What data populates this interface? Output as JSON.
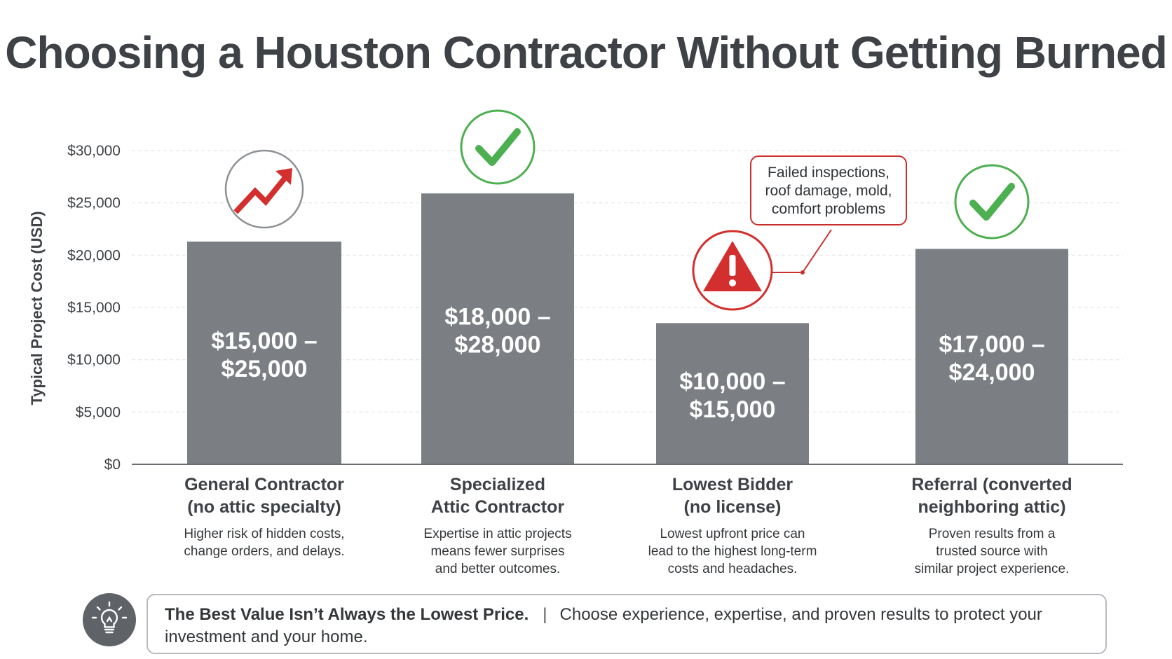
{
  "title": "Choosing a Houston Contractor Without Getting Burned",
  "chart_data": {
    "type": "bar",
    "ylabel": "Typical Project Cost (USD)",
    "ylim": [
      0,
      30000
    ],
    "yticks": [
      "$0",
      "$5,000",
      "$10,000",
      "$15,000",
      "$20,000",
      "$25,000",
      "$30,000"
    ],
    "grid": true,
    "categories": [
      "General Contractor\n(no attic specialty)",
      "Specialized\nAttic Contractor",
      "Lowest Bidder\n(no license)",
      "Referral (converted\nneighboring attic)"
    ],
    "values": [
      21300,
      25900,
      13500,
      20600
    ],
    "bar_labels": [
      "$15,000 –\n$25,000",
      "$18,000 –\n$28,000",
      "$10,000 –\n$15,000",
      "$17,000 –\n$24,000"
    ],
    "descriptions": [
      "Higher risk of hidden costs,\nchange orders, and delays.",
      "Expertise in attic projects\nmeans fewer surprises\nand better outcomes.",
      "Lowest upfront price can\nlead to the highest long-term\ncosts and headaches.",
      "Proven results from a\ntrusted source with\nsimilar project experience."
    ],
    "markers": [
      "trend-up-icon",
      "checkmark-icon",
      "warning-icon",
      "checkmark-icon"
    ],
    "annotation": "Failed inspections,\nroof damage, mold,\ncomfort problems",
    "colors": {
      "bar": "#7b7e83",
      "check": "#4caf50",
      "warning": "#d32f2f"
    }
  },
  "banner": {
    "headline": "The Best Value Isn’t Always the Lowest Price.",
    "separator": "|",
    "text": "Choose experience, expertise, and proven results to protect your investment and your home.",
    "icon": "lightbulb-icon"
  }
}
